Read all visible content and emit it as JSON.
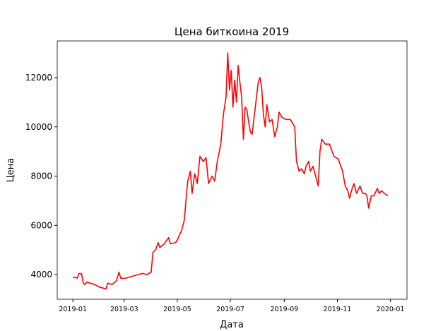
{
  "chart_data": {
    "type": "line",
    "title": "Цена биткоина 2019",
    "xlabel": "Дата",
    "ylabel": "Цена",
    "x": [
      0,
      3,
      5,
      7,
      10,
      12,
      14,
      16,
      20,
      25,
      30,
      35,
      38,
      40,
      45,
      50,
      53,
      55,
      60,
      65,
      70,
      75,
      80,
      85,
      90,
      92,
      95,
      98,
      100,
      105,
      110,
      112,
      118,
      120,
      125,
      128,
      130,
      132,
      135,
      137,
      140,
      143,
      146,
      150,
      153,
      156,
      160,
      163,
      166,
      170,
      173,
      176,
      178,
      180,
      182,
      184,
      186,
      188,
      190,
      192,
      194,
      196,
      198,
      200,
      202,
      204,
      206,
      208,
      211,
      213,
      215,
      217,
      219,
      221,
      223,
      226,
      229,
      232,
      235,
      237,
      240,
      245,
      250,
      255,
      257,
      260,
      263,
      266,
      268,
      271,
      273,
      276,
      279,
      282,
      284,
      286,
      290,
      295,
      297,
      300,
      305,
      310,
      313,
      316,
      318,
      321,
      323,
      326,
      330,
      333,
      336,
      338,
      340,
      343,
      346,
      350,
      352,
      355,
      358,
      362
    ],
    "series": [
      {
        "name": "Цена",
        "color": "#ff0000",
        "values": [
          3870,
          3900,
          3850,
          4050,
          4030,
          3650,
          3600,
          3700,
          3650,
          3600,
          3500,
          3450,
          3420,
          3650,
          3600,
          3750,
          4100,
          3850,
          3850,
          3900,
          3950,
          4000,
          4050,
          4000,
          4100,
          4900,
          5000,
          5300,
          5100,
          5250,
          5500,
          5250,
          5300,
          5400,
          5800,
          6200,
          7000,
          7800,
          8200,
          7300,
          8100,
          7700,
          8800,
          8600,
          8750,
          7700,
          8000,
          7800,
          8600,
          9300,
          10500,
          11200,
          13000,
          11500,
          12300,
          10800,
          11900,
          11000,
          12500,
          11800,
          11200,
          9500,
          10800,
          10700,
          10200,
          9800,
          9700,
          10300,
          11200,
          11800,
          12000,
          11600,
          10500,
          10000,
          10900,
          10200,
          10300,
          9600,
          10000,
          10600,
          10400,
          10300,
          10300,
          10000,
          8600,
          8200,
          8300,
          8100,
          8400,
          8600,
          8200,
          8400,
          8000,
          7600,
          9000,
          9500,
          9300,
          9300,
          9100,
          8800,
          8700,
          8200,
          7600,
          7400,
          7100,
          7500,
          7700,
          7300,
          7600,
          7300,
          7300,
          7200,
          6700,
          7200,
          7200,
          7500,
          7300,
          7400,
          7300,
          7200
        ]
      }
    ],
    "xlim": [
      -18,
      384
    ],
    "xticks": [
      {
        "value": 0,
        "label": "2019-01"
      },
      {
        "value": 59,
        "label": "2019-03"
      },
      {
        "value": 120,
        "label": "2019-05"
      },
      {
        "value": 181,
        "label": "2019-07"
      },
      {
        "value": 243,
        "label": "2019-09"
      },
      {
        "value": 304,
        "label": "2019-11"
      },
      {
        "value": 365,
        "label": "2020-01"
      }
    ],
    "ylim": [
      3000,
      13490
    ],
    "yticks": [
      4000,
      6000,
      8000,
      10000,
      12000
    ]
  }
}
